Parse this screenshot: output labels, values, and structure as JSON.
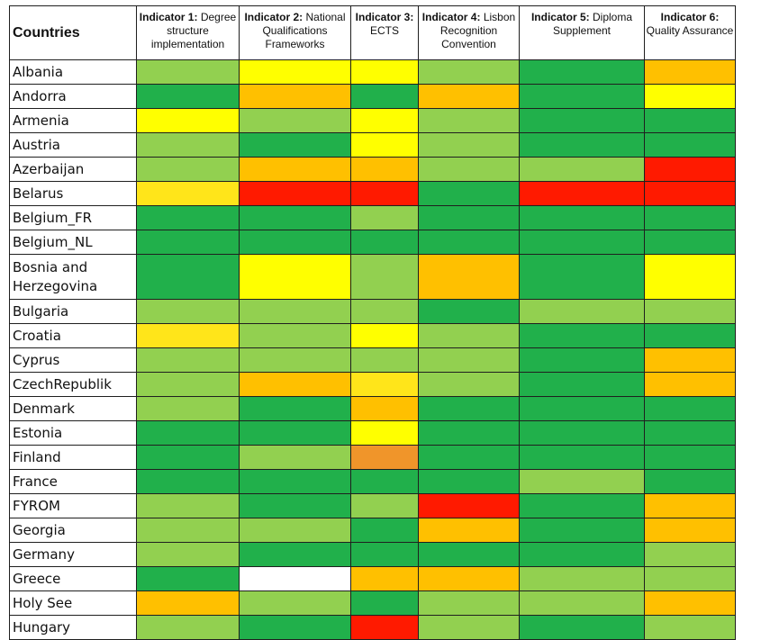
{
  "chart_data": {
    "type": "heatmap",
    "row_header": "Countries",
    "columns": [
      {
        "bold": "Indicator 1:",
        "rest": " Degree structure implementation"
      },
      {
        "bold": "Indicator 2:",
        "rest": " National Qualifications Frameworks"
      },
      {
        "bold": "Indicator 3:",
        "rest": " ECTS"
      },
      {
        "bold": "Indicator 4:",
        "rest": " Lisbon Recognition Convention"
      },
      {
        "bold": "Indicator 5:",
        "rest": " Diploma Supplement"
      },
      {
        "bold": "Indicator 6:",
        "rest": " Quality Assurance"
      }
    ],
    "colors": {
      "dark-green": "#21b04b",
      "light-green": "#92d050",
      "yellow": "#ffff00",
      "light-yellow": "#ffe51a",
      "orange": "#ffc000",
      "dark-orange": "#f0952a",
      "red": "#ff1a00",
      "white": "#ffffff"
    },
    "rows": [
      {
        "country": "Albania",
        "cells": [
          "light-green",
          "yellow",
          "yellow",
          "light-green",
          "dark-green",
          "orange"
        ]
      },
      {
        "country": "Andorra",
        "cells": [
          "dark-green",
          "orange",
          "dark-green",
          "orange",
          "dark-green",
          "yellow"
        ]
      },
      {
        "country": "Armenia",
        "cells": [
          "yellow",
          "light-green",
          "yellow",
          "light-green",
          "dark-green",
          "dark-green"
        ]
      },
      {
        "country": "Austria",
        "cells": [
          "light-green",
          "dark-green",
          "yellow",
          "light-green",
          "dark-green",
          "dark-green"
        ]
      },
      {
        "country": "Azerbaijan",
        "cells": [
          "light-green",
          "orange",
          "orange",
          "light-green",
          "light-green",
          "red"
        ]
      },
      {
        "country": "Belarus",
        "cells": [
          "light-yellow",
          "red",
          "red",
          "dark-green",
          "red",
          "red"
        ]
      },
      {
        "country": "Belgium_FR",
        "cells": [
          "dark-green",
          "dark-green",
          "light-green",
          "dark-green",
          "dark-green",
          "dark-green"
        ]
      },
      {
        "country": "Belgium_NL",
        "cells": [
          "dark-green",
          "dark-green",
          "dark-green",
          "dark-green",
          "dark-green",
          "dark-green"
        ]
      },
      {
        "country": "Bosnia and Herzegovina",
        "cells": [
          "dark-green",
          "yellow",
          "light-green",
          "orange",
          "dark-green",
          "yellow"
        ]
      },
      {
        "country": "Bulgaria",
        "cells": [
          "light-green",
          "light-green",
          "light-green",
          "dark-green",
          "light-green",
          "light-green"
        ]
      },
      {
        "country": "Croatia",
        "cells": [
          "light-yellow",
          "light-green",
          "yellow",
          "light-green",
          "dark-green",
          "dark-green"
        ]
      },
      {
        "country": "Cyprus",
        "cells": [
          "light-green",
          "light-green",
          "light-green",
          "light-green",
          "dark-green",
          "orange"
        ]
      },
      {
        "country": "CzechRepublik",
        "cells": [
          "light-green",
          "orange",
          "light-yellow",
          "light-green",
          "dark-green",
          "orange"
        ]
      },
      {
        "country": "Denmark",
        "cells": [
          "light-green",
          "dark-green",
          "orange",
          "dark-green",
          "dark-green",
          "dark-green"
        ]
      },
      {
        "country": "Estonia",
        "cells": [
          "dark-green",
          "dark-green",
          "yellow",
          "dark-green",
          "dark-green",
          "dark-green"
        ]
      },
      {
        "country": "Finland",
        "cells": [
          "dark-green",
          "light-green",
          "dark-orange",
          "dark-green",
          "dark-green",
          "dark-green"
        ]
      },
      {
        "country": "France",
        "cells": [
          "dark-green",
          "dark-green",
          "dark-green",
          "dark-green",
          "light-green",
          "dark-green"
        ]
      },
      {
        "country": "FYROM",
        "cells": [
          "light-green",
          "dark-green",
          "light-green",
          "red",
          "dark-green",
          "orange"
        ]
      },
      {
        "country": "Georgia",
        "cells": [
          "light-green",
          "light-green",
          "dark-green",
          "orange",
          "dark-green",
          "orange"
        ]
      },
      {
        "country": "Germany",
        "cells": [
          "light-green",
          "dark-green",
          "dark-green",
          "dark-green",
          "dark-green",
          "light-green"
        ]
      },
      {
        "country": "Greece",
        "cells": [
          "dark-green",
          "white",
          "orange",
          "orange",
          "light-green",
          "light-green"
        ]
      },
      {
        "country": "Holy See",
        "cells": [
          "orange",
          "light-green",
          "dark-green",
          "light-green",
          "light-green",
          "orange"
        ]
      },
      {
        "country": "Hungary",
        "cells": [
          "light-green",
          "dark-green",
          "red",
          "light-green",
          "dark-green",
          "light-green"
        ]
      }
    ]
  }
}
